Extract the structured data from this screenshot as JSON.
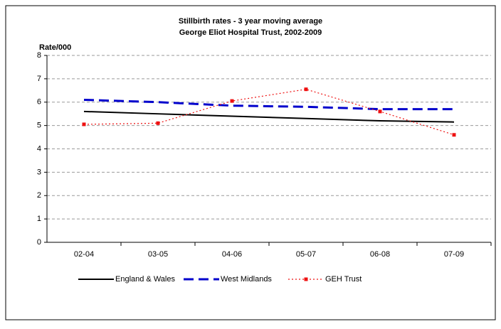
{
  "chart_data": {
    "type": "line",
    "title": "Stillbirth rates - 3 year moving average",
    "subtitle": "George Eliot Hospital Trust, 2002-2009",
    "y_label": "Rate/000",
    "categories": [
      "02-04",
      "03-05",
      "04-06",
      "05-07",
      "06-08",
      "07-09"
    ],
    "series": [
      {
        "name": "England & Wales",
        "color": "#000000",
        "style": "solid",
        "values": [
          5.6,
          5.5,
          5.4,
          5.3,
          5.2,
          5.15
        ]
      },
      {
        "name": "West Midlands",
        "color": "#0000cc",
        "style": "dashed",
        "values": [
          6.1,
          6.0,
          5.85,
          5.8,
          5.7,
          5.7
        ]
      },
      {
        "name": "GEH Trust",
        "color": "#ee1111",
        "style": "dotted",
        "marker": "square",
        "values": [
          5.05,
          5.1,
          6.05,
          6.55,
          5.6,
          4.6
        ]
      }
    ],
    "ylim": [
      0,
      8
    ],
    "yticks": [
      0,
      1,
      2,
      3,
      4,
      5,
      6,
      7,
      8
    ],
    "grid": true
  }
}
